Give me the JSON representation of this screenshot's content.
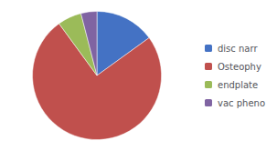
{
  "chart_data": {
    "type": "pie",
    "categories": [
      "disc narr",
      "Osteophy",
      "endplate",
      "vac pheno"
    ],
    "values": [
      15,
      75,
      6,
      4
    ],
    "colors": [
      "#4472C4",
      "#C0504D",
      "#9BBB59",
      "#8064A2"
    ],
    "legend": "right"
  }
}
